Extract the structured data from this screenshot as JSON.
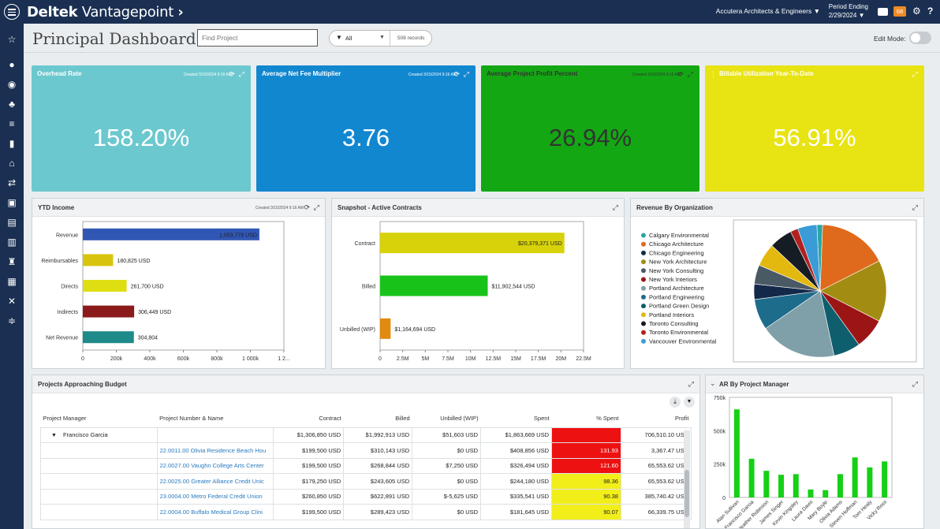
{
  "app": {
    "brand_prefix": "Deltek",
    "brand_name": "Vantagepoint",
    "chevron": "›",
    "company": "Accutera Architects & Engineers",
    "period_label": "Period Ending",
    "period_date": "2/29/2024",
    "badge": "68"
  },
  "header": {
    "title": "Principal Dashboard",
    "find_placeholder": "Find Project",
    "filter_value": "All",
    "records": "508 records",
    "edit_mode": "Edit Mode:"
  },
  "sidebar_icons": [
    "star-icon",
    "person-icon",
    "compass-icon",
    "money-bag-icon",
    "list-icon",
    "bar-chart-icon",
    "bank-icon",
    "transfer-icon",
    "building-icon",
    "document-icon",
    "chart-columns-icon",
    "trophy-icon",
    "calculator-icon",
    "tools-icon",
    "sliders-icon"
  ],
  "kpis": [
    {
      "title": "Overhead Rate",
      "created": "Created 3/15/2024 9:16 AM",
      "value": "158.20%",
      "color": "#6cc8cf"
    },
    {
      "title": "Average Net Fee Multiplier",
      "created": "Created 3/15/2024 9:16 AM",
      "value": "3.76",
      "color": "#1187d0"
    },
    {
      "title": "Average Project Profit Percent",
      "created": "Created 3/15/2024 9:16 AM",
      "value": "26.94%",
      "color": "#13a813"
    },
    {
      "title": "Billable Utilization Year-To-Date",
      "created": "",
      "value": "56.91%",
      "color": "#e8e313"
    }
  ],
  "ytd": {
    "title": "YTD Income",
    "created": "Created 3/15/2024 9:16 AM"
  },
  "snapshot": {
    "title": "Snapshot - Active Contracts"
  },
  "revorg": {
    "title": "Revenue By Organization"
  },
  "budget": {
    "title": "Projects Approaching Budget",
    "columns": [
      "Project Manager",
      "Project Number & Name",
      "Contract",
      "Billed",
      "Unbilled (WIP)",
      "Spent",
      "% Spent",
      "Profit"
    ],
    "group": {
      "manager": "Francisco Garcia",
      "contract": "$1,306,850 USD",
      "billed": "$1,992,913 USD",
      "unbilled": "$51,603 USD",
      "spent": "$1,863,669 USD",
      "pct": "",
      "profit": "706,510.10 USD"
    },
    "rows": [
      {
        "name": "22.0011.00 Olivia Residence Beach Hou",
        "contract": "$199,500 USD",
        "billed": "$310,143 USD",
        "unbilled": "$0 USD",
        "spent": "$408,856 USD",
        "pct": "131.93",
        "profit": "3,367.47 USD",
        "pct_color": "#ee1111"
      },
      {
        "name": "22.0027.00 Vaughn College Arts Center",
        "contract": "$199,500 USD",
        "billed": "$268,844 USD",
        "unbilled": "$7,250 USD",
        "spent": "$326,494 USD",
        "pct": "121.60",
        "profit": "65,553.62 USD",
        "pct_color": "#ee1111"
      },
      {
        "name": "22.0025.00 Greater Alliance Credit Unic",
        "contract": "$179,250 USD",
        "billed": "$243,605 USD",
        "unbilled": "$0 USD",
        "spent": "$244,180 USD",
        "pct": "98.36",
        "profit": "65,553.62 USD",
        "pct_color": "#f2ee1a"
      },
      {
        "name": "23.0004.00 Metro Federal Credit Union",
        "contract": "$260,850 USD",
        "billed": "$622,891 USD",
        "unbilled": "$-5,625 USD",
        "spent": "$335,541 USD",
        "pct": "90.38",
        "profit": "385,740.42 USD",
        "pct_color": "#f2ee1a"
      },
      {
        "name": "22.0004.00 Buffalo Medical Group Clini",
        "contract": "$199,500 USD",
        "billed": "$289,423 USD",
        "unbilled": "$0 USD",
        "spent": "$181,645 USD",
        "pct": "90.07",
        "profit": "66,339.75 USD",
        "pct_color": "#f2ee1a"
      }
    ]
  },
  "ar": {
    "title": "AR By Project Manager"
  },
  "chart_data": [
    {
      "type": "bar",
      "title": "YTD Income",
      "orientation": "horizontal",
      "categories": [
        "Revenue",
        "Reimbursables",
        "Directs",
        "Indirects",
        "Net Revenue"
      ],
      "values": [
        1053778,
        180825,
        261700,
        306449,
        304804
      ],
      "labels": [
        "1,053,778 USD",
        "180,825 USD",
        "261,700 USD",
        "306,449 USD",
        "304,804"
      ],
      "colors": [
        "#3157b5",
        "#d8c40c",
        "#dede12",
        "#8b1b1b",
        "#1f8a8a"
      ],
      "xticks": [
        "0",
        "200k",
        "400k",
        "600k",
        "800k",
        "1 000k",
        "1 2..."
      ],
      "xlim": [
        0,
        1200000
      ]
    },
    {
      "type": "bar",
      "title": "Snapshot - Active Contracts",
      "orientation": "horizontal",
      "categories": [
        "Contract",
        "Billed",
        "Unbilled (WIP)"
      ],
      "values": [
        20379371,
        11902544,
        1164694
      ],
      "labels": [
        "$20,379,371 USD",
        "$11,902,544 USD",
        "$1,164,694 USD"
      ],
      "colors": [
        "#d7d20a",
        "#19c219",
        "#e08a10"
      ],
      "xticks": [
        "0",
        "2.5M",
        "5M",
        "7.5M",
        "10M",
        "12.5M",
        "15M",
        "17.5M",
        "20M",
        "22.5M"
      ],
      "xlim": [
        0,
        22500000
      ]
    },
    {
      "type": "pie",
      "title": "Revenue By Organization",
      "legend": [
        "Calgary Environmental",
        "Chicago Architecture",
        "Chicago Engineering",
        "New York Architecture",
        "New York Consulting",
        "New York Interiors",
        "Portland Architecture",
        "Portland Engineering",
        "Portland Green Design",
        "Portland Interiors",
        "Toronto Consulting",
        "Toronto Environmental",
        "Vancouver Environmental"
      ],
      "colors": [
        "#2aa6a6",
        "#e06a1b",
        "#13294a",
        "#a38c12",
        "#4a5a65",
        "#9c1515",
        "#7fa0a8",
        "#1e6c8c",
        "#0e5e6e",
        "#e3b80f",
        "#161c24",
        "#b22020",
        "#3a9bd6"
      ],
      "values": [
        1.5,
        18,
        4,
        16,
        5,
        8,
        20,
        8,
        7,
        6,
        6,
        2,
        5
      ]
    },
    {
      "type": "bar",
      "title": "AR By Project Manager",
      "categories": [
        "Alan Sullivan",
        "Francisco Garcia",
        "Heather Robinson",
        "James Singer",
        "Kevin Kingsley",
        "Laura Davis",
        "Mary Boyle",
        "Olivia Adams",
        "Steven Hoffman",
        "Tom Healy",
        "Vicky Ross"
      ],
      "values": [
        660000,
        290000,
        200000,
        170000,
        175000,
        60000,
        55000,
        175000,
        300000,
        225000,
        270000
      ],
      "yticks": [
        "750k",
        "500k",
        "250k",
        "0"
      ],
      "ylim": [
        0,
        750000
      ],
      "color": "#15d015"
    }
  ]
}
